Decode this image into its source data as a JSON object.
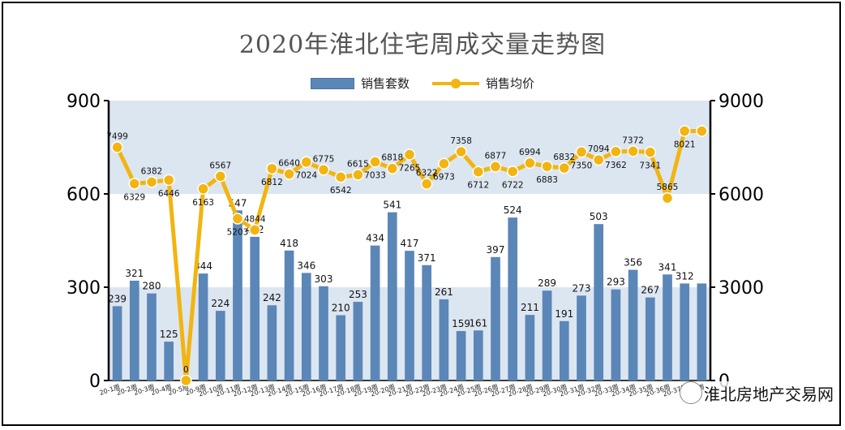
{
  "chart_data": {
    "type": "bar",
    "title": "2020年淮北住宅周成交量走势图",
    "categories": [
      "20-1周",
      "20-2周",
      "20-3周",
      "20-4周",
      "20-5周",
      "20-9周",
      "20-10周",
      "20-11周",
      "20-12周",
      "20-13周",
      "20-14周",
      "20-15周",
      "20-16周",
      "20-17周",
      "20-18周",
      "20-19周",
      "20-20周",
      "20-21周",
      "20-22周",
      "20-23周",
      "20-24周",
      "20-25周",
      "20-26周",
      "20-27周",
      "20-28周",
      "20-29周",
      "20-30周",
      "20-31周",
      "20-32周",
      "20-33周",
      "20-34周",
      "20-35周",
      "20-36周",
      "20-37周",
      "20-38周"
    ],
    "series": [
      {
        "name": "销售套数",
        "type": "bar",
        "axis": "left",
        "values": [
          239,
          321,
          280,
          125,
          0,
          344,
          224,
          547,
          462,
          242,
          418,
          346,
          303,
          210,
          253,
          434,
          541,
          417,
          371,
          261,
          159,
          161,
          397,
          524,
          211,
          289,
          191,
          273,
          503,
          293,
          356,
          267,
          341,
          312,
          312
        ]
      },
      {
        "name": "销售均价",
        "type": "line",
        "axis": "right",
        "values": [
          7499,
          6329,
          6382,
          6446,
          0,
          6163,
          6567,
          5203,
          4844,
          6812,
          6640,
          7024,
          6775,
          6542,
          6615,
          7033,
          6818,
          7265,
          6322,
          6973,
          7358,
          6712,
          6877,
          6722,
          6994,
          6883,
          6832,
          7350,
          7094,
          7362,
          7372,
          7341,
          5865,
          8021,
          8021
        ]
      }
    ],
    "bar_labels": [
      "239",
      "321",
      "280",
      "125",
      "0",
      "344",
      "224",
      "547",
      "462",
      "242",
      "418",
      "346",
      "303",
      "210",
      "253",
      "434",
      "541",
      "417",
      "371",
      "261",
      "159",
      "161",
      "397",
      "524",
      "211",
      "289",
      "191",
      "273",
      "503",
      "293",
      "356",
      "267",
      "341",
      "312",
      ""
    ],
    "line_labels": [
      "7499",
      "6329",
      "6382",
      "6446",
      "0",
      "6163",
      "6567",
      "5203",
      "4844",
      "6812",
      "6640",
      "7024",
      "6775",
      "6542",
      "6615",
      "7033",
      "6818",
      "7265",
      "6322",
      "6973",
      "7358",
      "6712",
      "6877",
      "6722",
      "6994",
      "6883",
      "6832",
      "7350",
      "7094",
      "7362",
      "7372",
      "7341",
      "5865",
      "8021",
      ""
    ],
    "yleft": {
      "min": 0,
      "max": 900,
      "ticks": [
        "0",
        "300",
        "600",
        "900"
      ]
    },
    "yright": {
      "min": 0,
      "max": 9000,
      "ticks": [
        "0",
        "3000",
        "6000",
        "9000"
      ]
    },
    "legend_position": "top-center",
    "colors": {
      "bar": "#5b86b8",
      "line": "#f2b411",
      "band": "#dce6f1"
    }
  },
  "watermark": {
    "text": "淮北房地产交易网"
  }
}
